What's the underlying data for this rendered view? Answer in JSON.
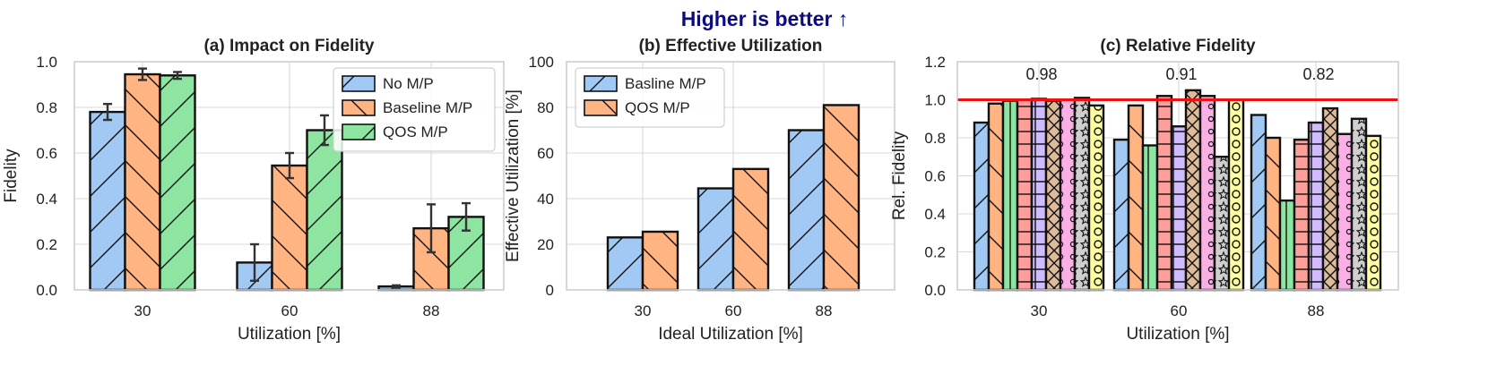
{
  "suptitle": "Higher is better ↑",
  "colors": {
    "blue": "#a1c9f4",
    "orange": "#ffb482",
    "green": "#8de5a1",
    "red": "#ff9f9b",
    "purple": "#d0bbff",
    "brown": "#debb9b",
    "pink": "#fab0e4",
    "gray": "#cfcfcf",
    "yellow": "#fffea3",
    "edge": "#111111",
    "grid": "#d9d9d9",
    "hline": "#ee1111",
    "title": "#0b0b80"
  },
  "chart_data": [
    {
      "id": "a",
      "type": "bar",
      "title": "(a) Impact on Fidelity",
      "xlabel": "Utilization [%]",
      "ylabel": "Fidelity",
      "categories": [
        "30",
        "60",
        "88"
      ],
      "ylim": [
        0,
        1.0
      ],
      "yticks": [
        "0.0",
        "0.2",
        "0.4",
        "0.6",
        "0.8",
        "1.0"
      ],
      "legend_position": "top-right",
      "series": [
        {
          "name": "No M/P",
          "color": "blue",
          "hatch": "/",
          "values": [
            0.78,
            0.12,
            0.015
          ],
          "errors": [
            0.035,
            0.08,
            0.005
          ]
        },
        {
          "name": "Baseline M/P",
          "color": "orange",
          "hatch": "\\",
          "values": [
            0.945,
            0.545,
            0.27
          ],
          "errors": [
            0.025,
            0.055,
            0.105
          ]
        },
        {
          "name": "QOS M/P",
          "color": "green",
          "hatch": "/",
          "values": [
            0.94,
            0.7,
            0.32
          ],
          "errors": [
            0.015,
            0.065,
            0.06
          ]
        }
      ]
    },
    {
      "id": "b",
      "type": "bar",
      "title": "(b) Effective Utilization",
      "xlabel": "Ideal Utilization [%]",
      "ylabel": "Effective Utilization [%]",
      "categories": [
        "30",
        "60",
        "88"
      ],
      "ylim": [
        0,
        100
      ],
      "yticks": [
        "0",
        "20",
        "40",
        "60",
        "80",
        "100"
      ],
      "legend_position": "top-left",
      "series": [
        {
          "name": "Basline M/P",
          "color": "blue",
          "hatch": "/",
          "values": [
            23,
            44.5,
            70
          ]
        },
        {
          "name": "QOS M/P",
          "color": "orange",
          "hatch": "\\",
          "values": [
            25.5,
            53,
            81
          ]
        }
      ]
    },
    {
      "id": "c",
      "type": "bar",
      "title": "(c) Relative Fidelity",
      "xlabel": "Utilization [%]",
      "ylabel": "Rel. Fidelity",
      "categories": [
        "30",
        "60",
        "88"
      ],
      "ylim": [
        0,
        1.2
      ],
      "yticks": [
        "0.0",
        "0.2",
        "0.4",
        "0.6",
        "0.8",
        "1.0",
        "1.2"
      ],
      "reference_line": 1.0,
      "annotations": [
        "0.98",
        "0.91",
        "0.82"
      ],
      "series": [
        {
          "color": "blue",
          "hatch": "/",
          "values": [
            0.88,
            0.79,
            0.92
          ]
        },
        {
          "color": "orange",
          "hatch": "\\",
          "values": [
            0.98,
            0.97,
            0.8
          ]
        },
        {
          "color": "green",
          "hatch": "|",
          "values": [
            0.995,
            0.76,
            0.47
          ]
        },
        {
          "color": "red",
          "hatch": "-",
          "values": [
            1.0,
            1.02,
            0.79
          ]
        },
        {
          "color": "purple",
          "hatch": "+",
          "values": [
            1.005,
            0.86,
            0.88
          ]
        },
        {
          "color": "brown",
          "hatch": "x",
          "values": [
            0.995,
            1.05,
            0.955
          ]
        },
        {
          "color": "pink",
          "hatch": "o",
          "values": [
            1.0,
            1.02,
            0.82
          ]
        },
        {
          "color": "gray",
          "hatch": "O",
          "values": [
            1.01,
            0.7,
            0.9
          ]
        },
        {
          "color": "yellow",
          "hatch": ".",
          "values": [
            0.97,
            1.0,
            0.81
          ]
        }
      ]
    }
  ]
}
